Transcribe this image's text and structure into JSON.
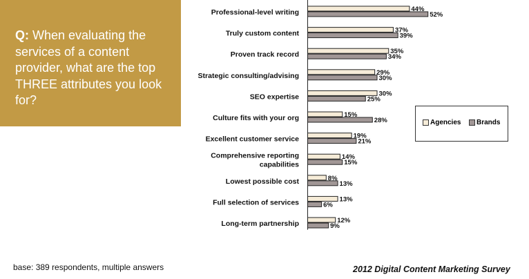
{
  "question": {
    "prefix": "Q:",
    "text": "When evaluating the services of a content provider, what are the top THREE attributes you look for?"
  },
  "chart_data": {
    "type": "bar",
    "orientation": "horizontal",
    "categories": [
      [
        "Professional-level writing"
      ],
      [
        "Truly custom content"
      ],
      [
        "Proven track record"
      ],
      [
        "Strategic consulting/advising"
      ],
      [
        "SEO expertise"
      ],
      [
        "Culture fits with your org"
      ],
      [
        "Excellent customer service"
      ],
      [
        "Comprehensive reporting",
        "capabilities"
      ],
      [
        "Lowest possible cost"
      ],
      [
        "Full selection of services"
      ],
      [
        "Long-term partnership"
      ]
    ],
    "series": [
      {
        "name": "Agencies",
        "values": [
          44,
          37,
          35,
          29,
          30,
          15,
          19,
          14,
          8,
          13,
          12
        ],
        "color": "#f6ecd8"
      },
      {
        "name": "Brands",
        "values": [
          52,
          39,
          34,
          30,
          25,
          28,
          21,
          15,
          13,
          6,
          9
        ],
        "color": "#a19796"
      }
    ],
    "value_suffix": "%",
    "legend_position": "right",
    "grid": false
  },
  "footer": {
    "base_note": "base:  389 respondents, multiple answers",
    "survey_title": "2012 Digital Content Marketing Survey"
  }
}
